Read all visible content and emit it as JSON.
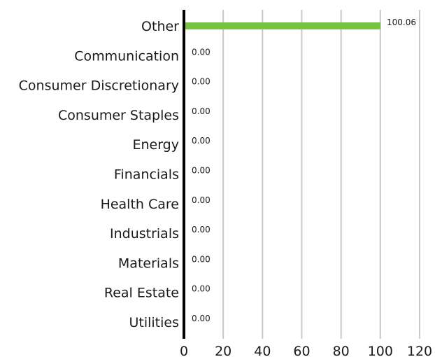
{
  "chart_data": {
    "type": "bar",
    "orientation": "horizontal",
    "categories": [
      "Other",
      "Communication",
      "Consumer Discretionary",
      "Consumer Staples",
      "Energy",
      "Financials",
      "Health Care",
      "Industrials",
      "Materials",
      "Real Estate",
      "Utilities"
    ],
    "values": [
      100.06,
      0.0,
      0.0,
      0.0,
      0.0,
      0.0,
      0.0,
      0.0,
      0.0,
      0.0,
      0.0
    ],
    "value_labels": [
      "100.06",
      "0.00",
      "0.00",
      "0.00",
      "0.00",
      "0.00",
      "0.00",
      "0.00",
      "0.00",
      "0.00",
      "0.00"
    ],
    "xlim": [
      0,
      120
    ],
    "xticks": [
      0,
      20,
      40,
      60,
      80,
      100,
      120
    ],
    "tick_labels": [
      "0",
      "20",
      "40",
      "60",
      "80",
      "100",
      "120"
    ],
    "title": "",
    "xlabel": "",
    "ylabel": "",
    "grid": "vertical",
    "legend": "none",
    "colors": {
      "bar": "#76c442",
      "grid": "#c8c8c8",
      "axis": "#000000",
      "text": "#1a1a1a"
    }
  }
}
